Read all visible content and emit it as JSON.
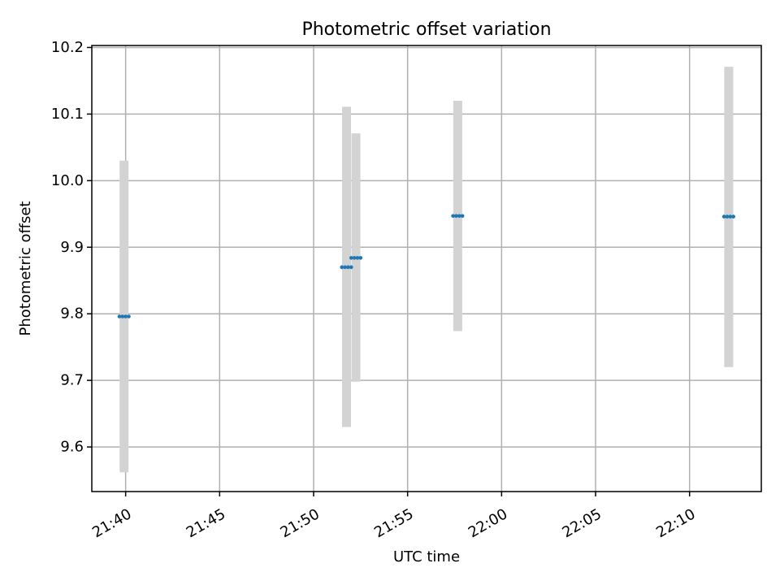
{
  "chart_data": {
    "type": "scatter",
    "title": "Photometric offset variation",
    "xlabel": "UTC time",
    "ylabel": "Photometric offset",
    "x_ticks": [
      "21:40",
      "21:45",
      "21:50",
      "21:55",
      "22:00",
      "22:05",
      "22:10"
    ],
    "y_ticks": [
      "9.6",
      "9.7",
      "9.8",
      "9.9",
      "10.0",
      "10.1",
      "10.2"
    ],
    "xlim": [
      "21:38:12",
      "22:13:49"
    ],
    "ylim": [
      9.533,
      10.203
    ],
    "grid": true,
    "point_color": "#1f77b4",
    "errorbar_color": "#d3d3d3",
    "series": [
      {
        "x": [
          "21:39:40",
          "21:39:50",
          "21:40:00",
          "21:40:10"
        ],
        "y": [
          9.796,
          9.796,
          9.796,
          9.796
        ],
        "err_low": 9.562,
        "err_high": 10.03
      },
      {
        "x": [
          "21:51:30",
          "21:51:40",
          "21:51:50",
          "21:52:00"
        ],
        "y": [
          9.87,
          9.87,
          9.87,
          9.87
        ],
        "err_low": 9.63,
        "err_high": 10.111
      },
      {
        "x": [
          "21:52:00",
          "21:52:10",
          "21:52:20",
          "21:52:30"
        ],
        "y": [
          9.884,
          9.884,
          9.884,
          9.884
        ],
        "err_low": 9.698,
        "err_high": 10.071
      },
      {
        "x": [
          "21:57:25",
          "21:57:35",
          "21:57:45",
          "21:57:55"
        ],
        "y": [
          9.947,
          9.947,
          9.947,
          9.947
        ],
        "err_low": 9.774,
        "err_high": 10.12
      },
      {
        "x": [
          "22:11:50",
          "22:12:00",
          "22:12:10",
          "22:12:20"
        ],
        "y": [
          9.946,
          9.946,
          9.946,
          9.946
        ],
        "err_low": 9.72,
        "err_high": 10.171
      }
    ]
  }
}
